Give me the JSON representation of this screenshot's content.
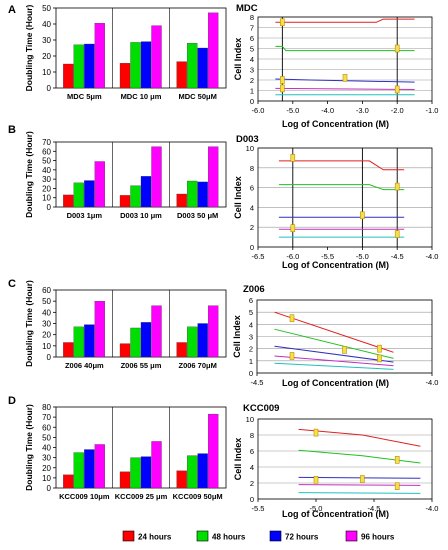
{
  "colors": {
    "24": "#ff0000",
    "48": "#00dd00",
    "72": "#0000ff",
    "96": "#ff00ff"
  },
  "legend": [
    {
      "label": "24 hours",
      "color": "#ff0000"
    },
    {
      "label": "48 hours",
      "color": "#00dd00"
    },
    {
      "label": "72 hours",
      "color": "#0000ff"
    },
    {
      "label": "96 hours",
      "color": "#ff00ff"
    }
  ],
  "chart_data": [
    {
      "type": "bar",
      "panel": "A",
      "ylabel": "Doubling Time (Hour)",
      "categories": [
        "MDC 5μm",
        "MDC 10 μm",
        "MDC 50μM"
      ],
      "ylim": [
        0,
        50
      ],
      "yticks": [
        0,
        10,
        20,
        30,
        40,
        50
      ],
      "tick_labels": [
        "0",
        "10",
        "20",
        "30",
        "40",
        "50"
      ],
      "series": [
        {
          "name": "24 hours",
          "values": [
            15,
            15.5,
            16.5
          ]
        },
        {
          "name": "48 hours",
          "values": [
            27,
            28.5,
            28
          ]
        },
        {
          "name": "72 hours",
          "values": [
            27.5,
            29,
            25
          ]
        },
        {
          "name": "96 hours",
          "values": [
            40.5,
            39,
            47
          ]
        }
      ]
    },
    {
      "type": "bar",
      "panel": "B",
      "ylabel": "Doubling Time (Hour)",
      "categories": [
        "D003 1μm",
        "D003 10 μm",
        "D003 50 μM"
      ],
      "ylim": [
        0,
        70
      ],
      "yticks": [
        0,
        10,
        20,
        30,
        40,
        50,
        60,
        70
      ],
      "tick_labels": [
        "0",
        "10",
        "20",
        "30",
        "40",
        "50",
        "60",
        "70"
      ],
      "series": [
        {
          "name": "24 hours",
          "values": [
            13,
            12.5,
            14
          ]
        },
        {
          "name": "48 hours",
          "values": [
            26,
            23,
            28
          ]
        },
        {
          "name": "72 hours",
          "values": [
            28.5,
            33,
            27
          ]
        },
        {
          "name": "96 hours",
          "values": [
            49,
            65,
            65
          ]
        }
      ]
    },
    {
      "type": "bar",
      "panel": "C",
      "ylabel": "Doubling Time (Hour)",
      "categories": [
        "Z006 40μm",
        "Z006 55 μm",
        "Z006 70μM"
      ],
      "ylim": [
        0,
        60
      ],
      "yticks": [
        0,
        10,
        20,
        30,
        40,
        50,
        60
      ],
      "tick_labels": [
        "0",
        "10",
        "20",
        "30",
        "40",
        "50",
        "60"
      ],
      "series": [
        {
          "name": "24 hours",
          "values": [
            13,
            12,
            13
          ]
        },
        {
          "name": "48 hours",
          "values": [
            27,
            26,
            27
          ]
        },
        {
          "name": "72 hours",
          "values": [
            29,
            31,
            30
          ]
        },
        {
          "name": "96 hours",
          "values": [
            50,
            46,
            46
          ]
        }
      ]
    },
    {
      "type": "bar",
      "panel": "D",
      "ylabel": "Doubling Time (Hour)",
      "categories": [
        "KCC009 10μm",
        "KCC009 25 μm",
        "KCC009 50μM"
      ],
      "ylim": [
        0,
        80
      ],
      "yticks": [
        0,
        10,
        20,
        30,
        40,
        50,
        60,
        70,
        80
      ],
      "tick_labels": [
        "0",
        "10",
        "20",
        "30",
        "40",
        "50",
        "60",
        "70",
        "80"
      ],
      "series": [
        {
          "name": "24 hours",
          "values": [
            13,
            16,
            17
          ]
        },
        {
          "name": "48 hours",
          "values": [
            35,
            30,
            32
          ]
        },
        {
          "name": "72 hours",
          "values": [
            38,
            31,
            34
          ]
        },
        {
          "name": "96 hours",
          "values": [
            43,
            46,
            73
          ]
        }
      ]
    },
    {
      "type": "line",
      "panel": "MDC",
      "title": "MDC",
      "xlabel": "Log of Concentration (M)",
      "ylabel": "Cell Index",
      "xlim": [
        -6.0,
        -1.0
      ],
      "ylim": [
        0,
        8
      ],
      "xticks": [
        -6.0,
        -5.0,
        -4.0,
        -3.0,
        -2.0,
        -1.0
      ],
      "xtick_labels": [
        "-6.0",
        "-5.0",
        "-4.0",
        "-3.0",
        "-2.0",
        "-1.0"
      ],
      "yticks": [
        0,
        1,
        2,
        3,
        4,
        5,
        6,
        7,
        8
      ],
      "ytick_labels": [
        "0",
        "1",
        "2",
        "3",
        "4",
        "5",
        "6",
        "7",
        "8"
      ],
      "vlines": [
        -5.3,
        -2.0
      ],
      "series": [
        {
          "color": "#e02020",
          "x": [
            -5.5,
            -2.6,
            -2.4,
            -1.5
          ],
          "y": [
            7.5,
            7.5,
            7.8,
            7.8
          ]
        },
        {
          "color": "#20c020",
          "x": [
            -5.5,
            -5.3,
            -5.2,
            -1.5
          ],
          "y": [
            5.2,
            5.2,
            4.8,
            4.8
          ]
        },
        {
          "color": "#3030c0",
          "x": [
            -5.5,
            -4.5,
            -1.5
          ],
          "y": [
            2.1,
            2.0,
            1.8
          ]
        },
        {
          "color": "#c030c0",
          "x": [
            -5.5,
            -1.5
          ],
          "y": [
            1.2,
            1.1
          ]
        },
        {
          "color": "#20c0c0",
          "x": [
            -5.5,
            -1.5
          ],
          "y": [
            0.6,
            0.6
          ]
        }
      ],
      "markers": [
        [
          -5.3,
          7.5
        ],
        [
          -5.3,
          2.0
        ],
        [
          -5.3,
          1.2
        ],
        [
          -3.5,
          2.2
        ],
        [
          -2.0,
          5.0
        ],
        [
          -2.0,
          1.1
        ]
      ]
    },
    {
      "type": "line",
      "panel": "D003",
      "title": "D003",
      "xlabel": "Log of Concentration (M)",
      "ylabel": "Cell Index",
      "xlim": [
        -6.5,
        -4.0
      ],
      "ylim": [
        0,
        10
      ],
      "xticks": [
        -6.5,
        -6.0,
        -5.5,
        -5.0,
        -4.5,
        -4.0
      ],
      "xtick_labels": [
        "-6.5",
        "-6.0",
        "-5.5",
        "-5.0",
        "-4.5",
        "-4.0"
      ],
      "yticks": [
        0,
        2,
        4,
        6,
        8,
        10
      ],
      "ytick_labels": [
        "0",
        "2",
        "4",
        "6",
        "8",
        "10"
      ],
      "vlines": [
        -6.0,
        -5.0,
        -4.5
      ],
      "series": [
        {
          "color": "#e02020",
          "x": [
            -6.2,
            -4.9,
            -4.7,
            -4.4
          ],
          "y": [
            8.7,
            8.7,
            7.8,
            7.8
          ]
        },
        {
          "color": "#20c020",
          "x": [
            -6.2,
            -4.9,
            -4.7,
            -4.4
          ],
          "y": [
            6.3,
            6.3,
            5.8,
            5.8
          ]
        },
        {
          "color": "#3030c0",
          "x": [
            -6.2,
            -4.4
          ],
          "y": [
            3.0,
            3.0
          ]
        },
        {
          "color": "#c030c0",
          "x": [
            -6.2,
            -4.4
          ],
          "y": [
            1.8,
            1.8
          ]
        },
        {
          "color": "#20c0c0",
          "x": [
            -6.2,
            -4.4
          ],
          "y": [
            1.0,
            1.0
          ]
        }
      ],
      "markers": [
        [
          -6.0,
          9.0
        ],
        [
          -6.0,
          1.9
        ],
        [
          -5.0,
          3.2
        ],
        [
          -4.5,
          6.1
        ],
        [
          -4.5,
          1.3
        ]
      ]
    },
    {
      "type": "line",
      "panel": "Z006",
      "title": "Z006",
      "xlabel": "Log of Concentration (M)",
      "ylabel": "Cell Index",
      "xlim": [
        -4.5,
        -4.0
      ],
      "ylim": [
        0,
        6
      ],
      "xticks": [
        -4.5,
        -4.0
      ],
      "xtick_labels": [
        "-4.5",
        "-4.0"
      ],
      "yticks": [
        0,
        1,
        2,
        3,
        4,
        5,
        6
      ],
      "ytick_labels": [
        "0",
        "1",
        "2",
        "3",
        "4",
        "5",
        "6"
      ],
      "vlines": [],
      "series": [
        {
          "color": "#e02020",
          "x": [
            -4.45,
            -4.11
          ],
          "y": [
            5.0,
            1.7
          ]
        },
        {
          "color": "#20c020",
          "x": [
            -4.45,
            -4.11
          ],
          "y": [
            3.6,
            1.2
          ]
        },
        {
          "color": "#3030c0",
          "x": [
            -4.45,
            -4.11
          ],
          "y": [
            2.2,
            0.9
          ]
        },
        {
          "color": "#c030c0",
          "x": [
            -4.45,
            -4.11
          ],
          "y": [
            1.4,
            0.6
          ]
        },
        {
          "color": "#20c0c0",
          "x": [
            -4.45,
            -4.11
          ],
          "y": [
            0.8,
            0.3
          ]
        }
      ],
      "markers": [
        [
          -4.4,
          4.5
        ],
        [
          -4.4,
          1.4
        ],
        [
          -4.25,
          1.9
        ],
        [
          -4.15,
          2.0
        ],
        [
          -4.15,
          1.2
        ]
      ]
    },
    {
      "type": "line",
      "panel": "KCC009",
      "title": "KCC009",
      "xlabel": "Log of Concentration (M)",
      "ylabel": "Cell Index",
      "xlim": [
        -5.5,
        -4.0
      ],
      "ylim": [
        0,
        10
      ],
      "xticks": [
        -5.5,
        -5.0,
        -4.5,
        -4.0
      ],
      "xtick_labels": [
        "-5.5",
        "-5.0",
        "-4.5",
        "-4.0"
      ],
      "yticks": [
        0,
        2,
        4,
        6,
        8,
        10
      ],
      "ytick_labels": [
        "0",
        "2",
        "4",
        "6",
        "8",
        "10"
      ],
      "vlines": [],
      "series": [
        {
          "color": "#e02020",
          "x": [
            -5.15,
            -4.6,
            -4.1
          ],
          "y": [
            8.7,
            8.0,
            6.6
          ]
        },
        {
          "color": "#20c020",
          "x": [
            -5.15,
            -4.6,
            -4.1
          ],
          "y": [
            6.1,
            5.4,
            4.5
          ]
        },
        {
          "color": "#3030c0",
          "x": [
            -5.15,
            -4.1
          ],
          "y": [
            2.7,
            2.6
          ]
        },
        {
          "color": "#c030c0",
          "x": [
            -5.15,
            -4.1
          ],
          "y": [
            1.8,
            1.7
          ]
        },
        {
          "color": "#20c0c0",
          "x": [
            -5.15,
            -4.1
          ],
          "y": [
            0.8,
            0.7
          ]
        }
      ],
      "markers": [
        [
          -5.0,
          8.3
        ],
        [
          -5.0,
          2.4
        ],
        [
          -4.6,
          2.5
        ],
        [
          -4.3,
          4.9
        ],
        [
          -4.3,
          1.6
        ]
      ]
    }
  ]
}
